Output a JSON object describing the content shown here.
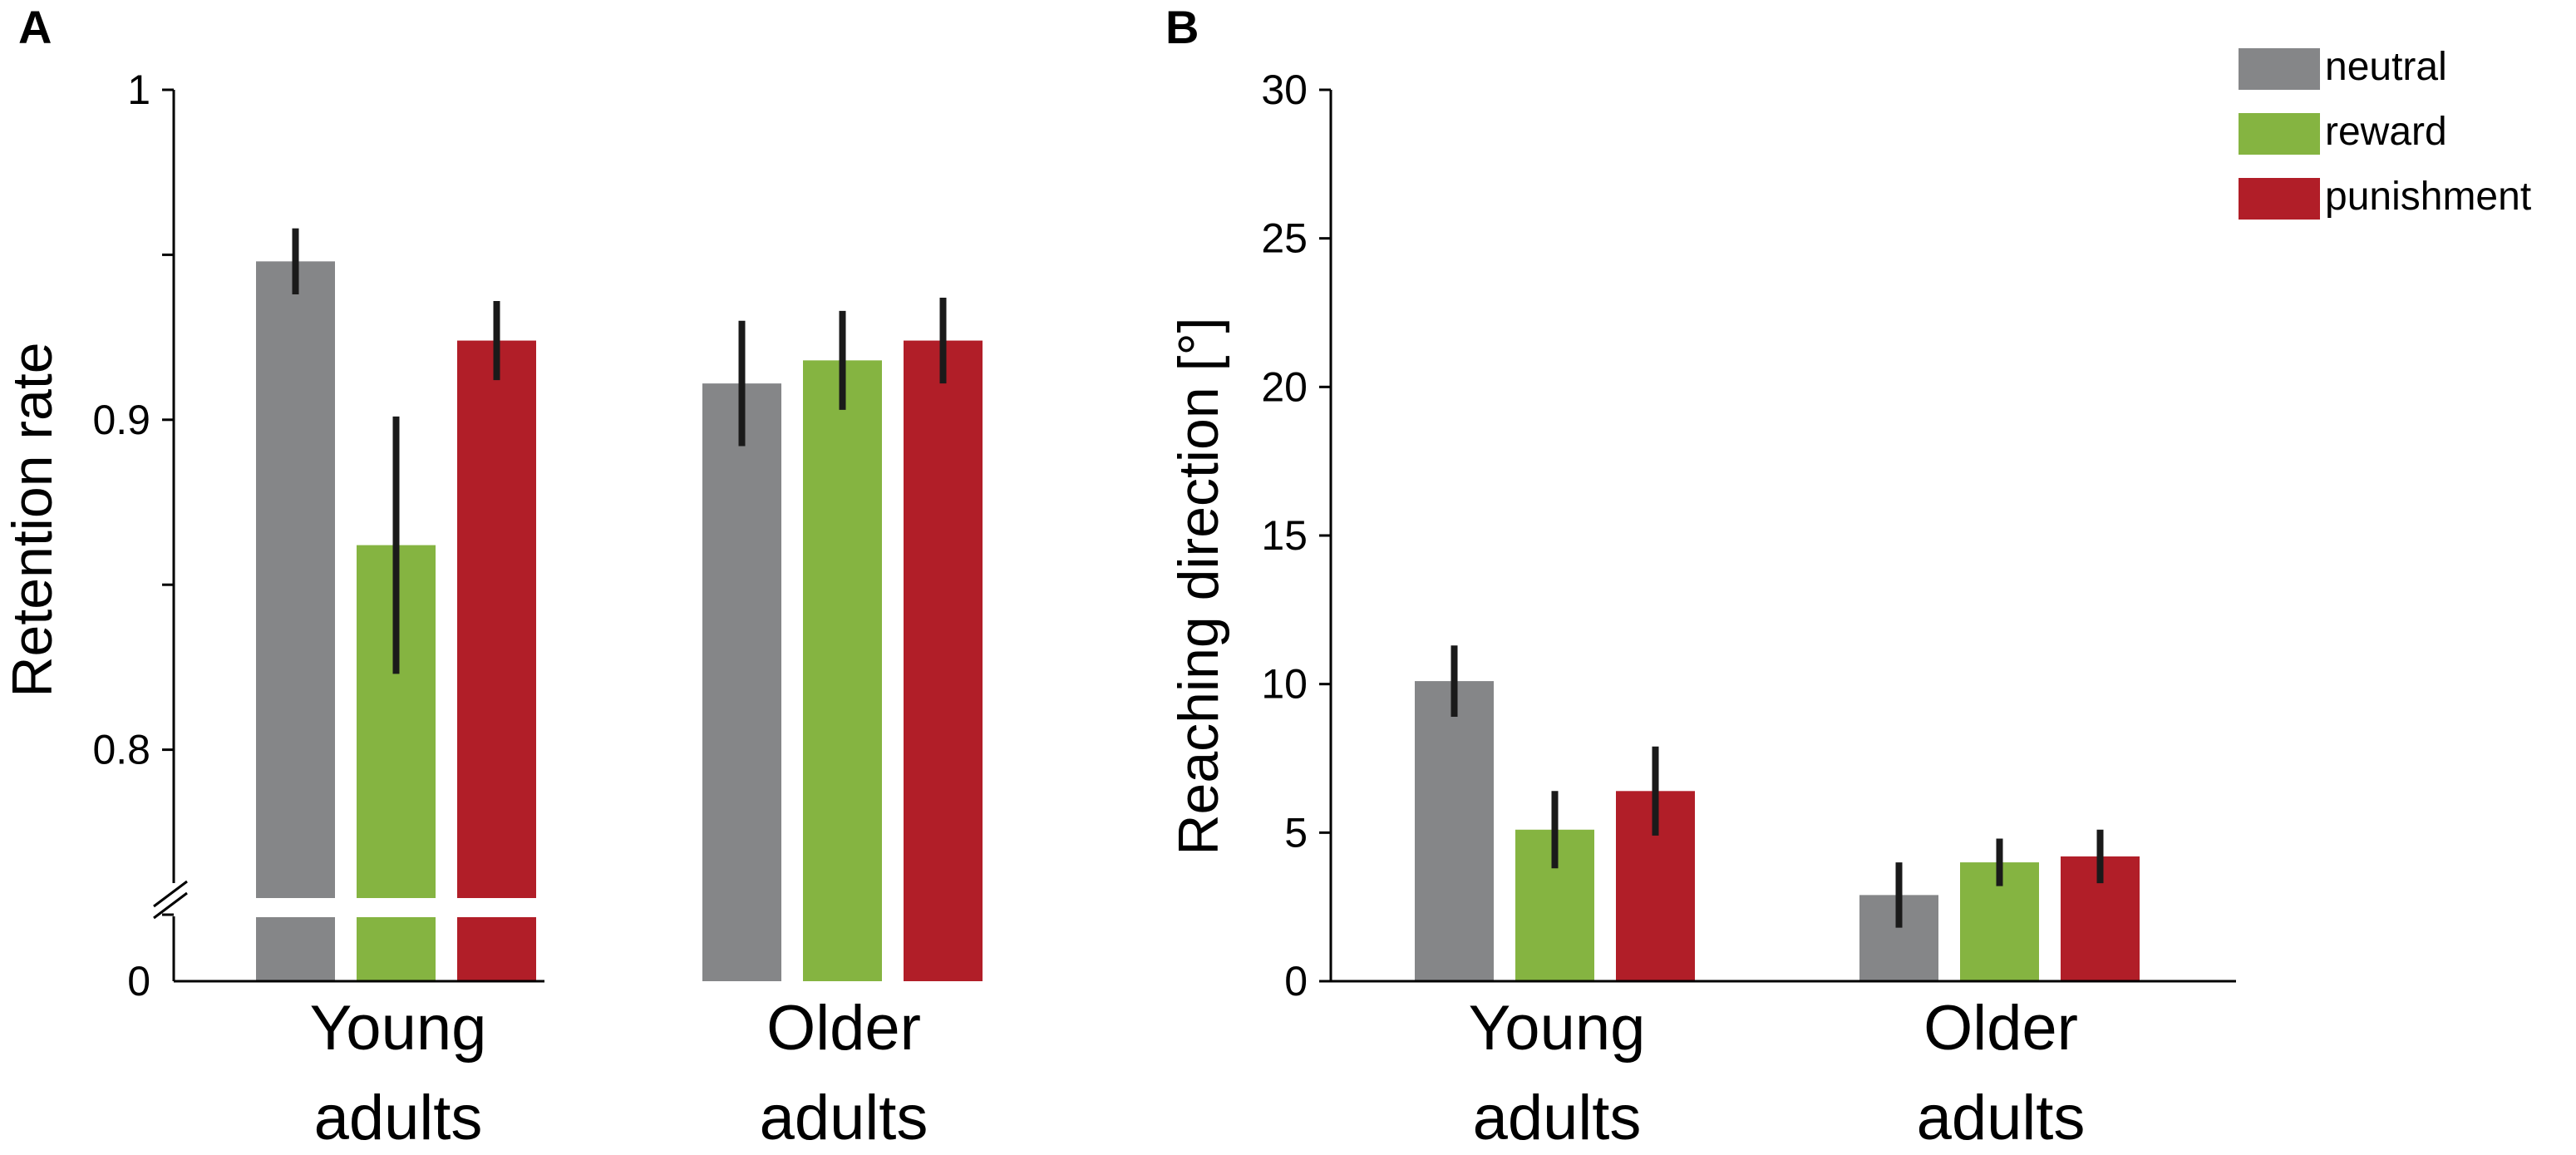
{
  "colors": {
    "neutral": "#858688",
    "reward": "#85b441",
    "punishment": "#b11e28"
  },
  "legend": [
    {
      "label": "neutral",
      "color_key": "neutral"
    },
    {
      "label": "reward",
      "color_key": "reward"
    },
    {
      "label": "punishment",
      "color_key": "punishment"
    }
  ],
  "chart_data": [
    {
      "panel": "A",
      "type": "bar",
      "ylabel": "Retention rate",
      "ylim": [
        0.75,
        1.0
      ],
      "axis_break": true,
      "break_label": "0",
      "yticks": [
        0.75,
        0.8,
        0.85,
        0.9,
        0.95,
        1.0
      ],
      "ytick_labels": [
        "",
        "0.8",
        "",
        "0.9",
        "",
        "1"
      ],
      "categories": [
        [
          "Young",
          "adults"
        ],
        [
          "Older",
          "adults"
        ]
      ],
      "series": [
        {
          "name": "neutral",
          "values": [
            0.948,
            0.911
          ],
          "errors": [
            0.01,
            0.019
          ]
        },
        {
          "name": "reward",
          "values": [
            0.862,
            0.918
          ],
          "errors": [
            0.039,
            0.015
          ]
        },
        {
          "name": "punishment",
          "values": [
            0.924,
            0.924
          ],
          "errors": [
            0.012,
            0.013
          ]
        }
      ]
    },
    {
      "panel": "B",
      "type": "bar",
      "ylabel": "Reaching direction [°]",
      "ylim": [
        0,
        30
      ],
      "yticks": [
        0,
        5,
        10,
        15,
        20,
        25,
        30
      ],
      "ytick_labels": [
        "0",
        "5",
        "10",
        "15",
        "20",
        "25",
        "30"
      ],
      "categories": [
        [
          "Young",
          "adults"
        ],
        [
          "Older",
          "adults"
        ]
      ],
      "series": [
        {
          "name": "neutral",
          "values": [
            10.1,
            2.9
          ],
          "errors": [
            1.2,
            1.1
          ]
        },
        {
          "name": "reward",
          "values": [
            5.1,
            4.0
          ],
          "errors": [
            1.3,
            0.8
          ]
        },
        {
          "name": "punishment",
          "values": [
            6.4,
            4.2
          ],
          "errors": [
            1.5,
            0.9
          ]
        }
      ]
    }
  ]
}
